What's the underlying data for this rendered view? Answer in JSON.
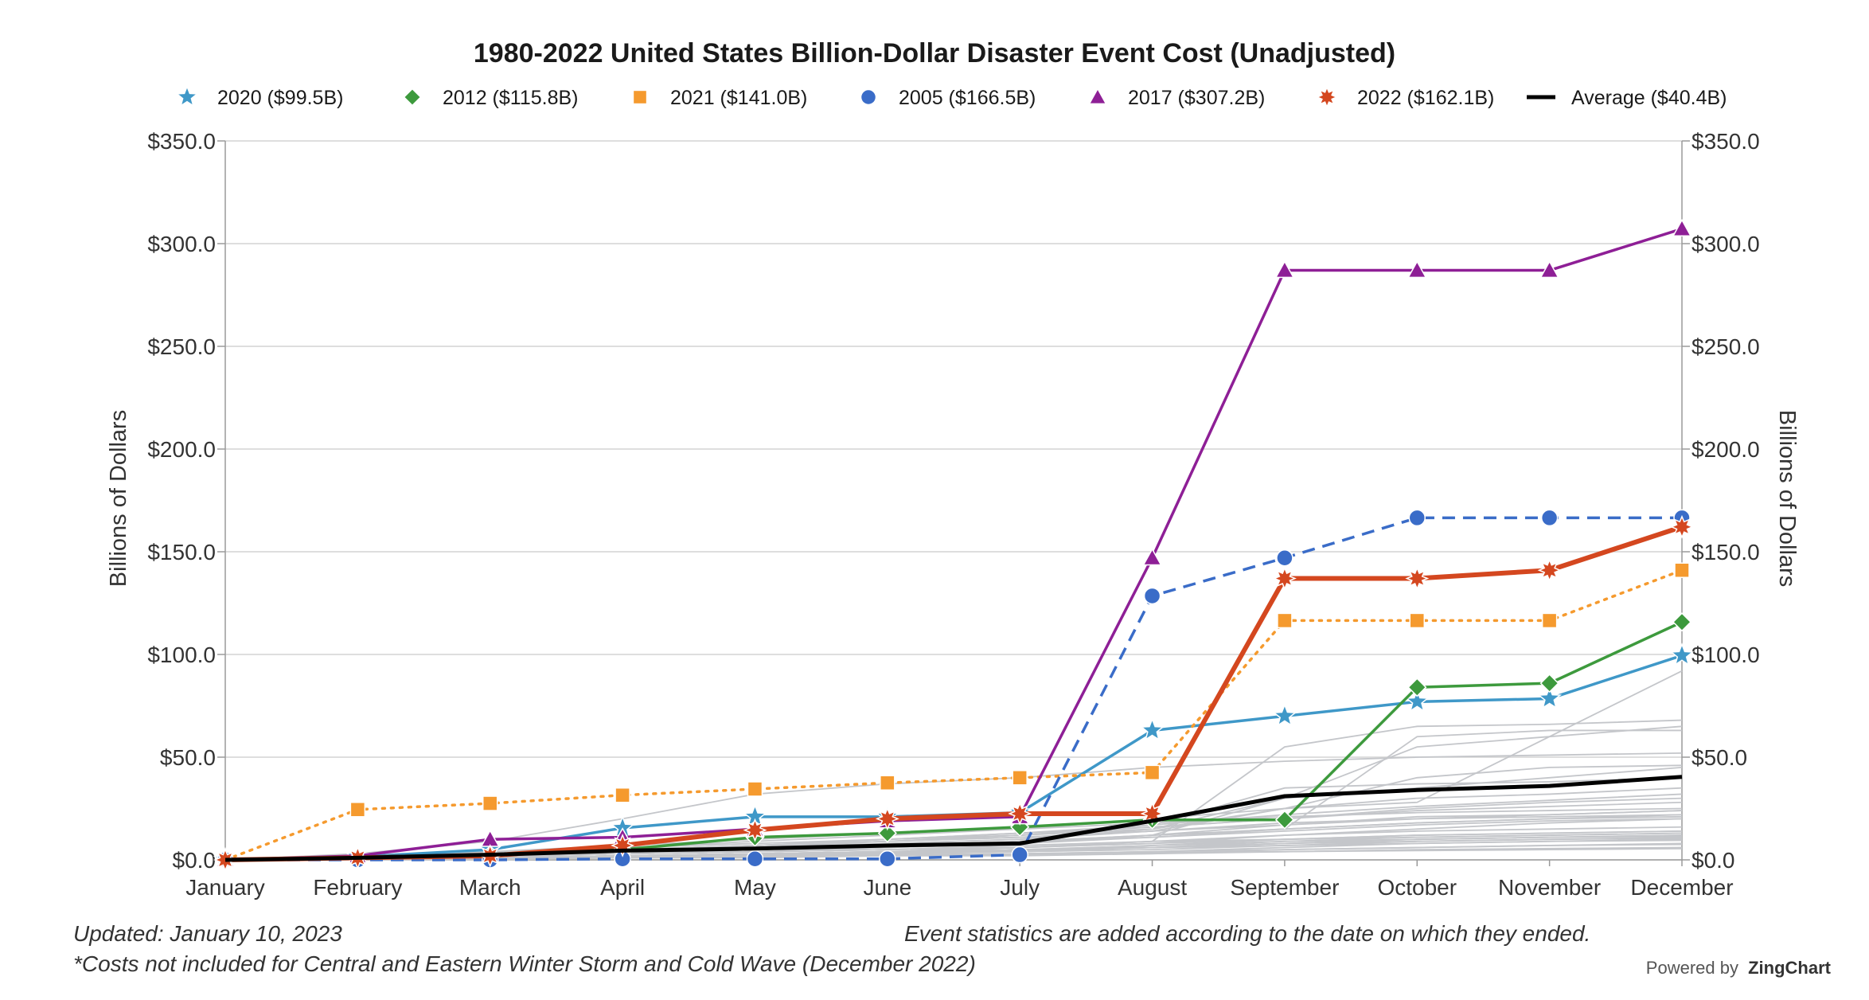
{
  "chart_data": {
    "type": "line",
    "title": "1980-2022 United States Billion-Dollar Disaster Event Cost (Unadjusted)",
    "ylabel": "Billions of Dollars",
    "ylabel_right": "Billions of Dollars",
    "xlabel": "",
    "ylim": [
      0,
      350
    ],
    "y_ticks": [
      "$0.0",
      "$50.0",
      "$100.0",
      "$150.0",
      "$200.0",
      "$250.0",
      "$300.0",
      "$350.0"
    ],
    "categories": [
      "January",
      "February",
      "March",
      "April",
      "May",
      "June",
      "July",
      "August",
      "September",
      "October",
      "November",
      "December"
    ],
    "grid": true,
    "legend_position": "top",
    "series": [
      {
        "name": "2020 ($99.5B)",
        "color": "#3f98c8",
        "marker": "star",
        "line": "solid",
        "values": [
          0,
          1.5,
          5,
          15.5,
          21,
          21,
          23,
          63,
          70,
          77,
          78.5,
          99.5
        ]
      },
      {
        "name": "2012 ($115.8B)",
        "color": "#3d9a3d",
        "marker": "diamond",
        "line": "solid",
        "values": [
          0,
          1.5,
          2.5,
          5,
          11,
          13,
          16,
          19.5,
          19.5,
          84,
          86,
          115.8
        ]
      },
      {
        "name": "2021 ($141.0B)",
        "color": "#f59a2e",
        "marker": "square",
        "line": "dotted",
        "values": [
          0,
          24.5,
          27.5,
          31.5,
          34.5,
          37.5,
          40,
          42.5,
          116.5,
          116.5,
          116.5,
          141.0
        ]
      },
      {
        "name": "2005 ($166.5B)",
        "color": "#3a6cc8",
        "marker": "circle",
        "line": "dashed",
        "values": [
          0,
          0,
          0,
          0.5,
          0.5,
          0.5,
          2.5,
          128.5,
          147,
          166.5,
          166.5,
          166.5
        ]
      },
      {
        "name": "2017 ($307.2B)",
        "color": "#8e1f96",
        "marker": "triangle",
        "line": "solid",
        "values": [
          0,
          2,
          10,
          11,
          15,
          19,
          21,
          147,
          287,
          287,
          287,
          307.2
        ]
      },
      {
        "name": "2022 ($162.1B)",
        "color": "#d4471f",
        "marker": "burst",
        "line": "solid",
        "values": [
          0,
          1,
          2,
          7,
          14.5,
          20,
          22.5,
          22.5,
          137,
          137,
          141,
          162.1
        ]
      },
      {
        "name": "Average ($40.4B)",
        "color": "#000000",
        "marker": "none",
        "line": "solid",
        "values": [
          0,
          1,
          2.5,
          4.5,
          5.5,
          7,
          8,
          19,
          31,
          34,
          36,
          40.4
        ]
      }
    ],
    "background_series_color": "#c4c6ca",
    "background_series": [
      [
        0,
        0.5,
        1,
        2,
        3,
        4,
        5,
        6,
        8,
        9,
        10,
        10.5
      ],
      [
        0,
        1,
        2,
        3,
        4,
        5,
        6,
        9,
        12,
        14,
        15,
        16
      ],
      [
        0,
        0,
        1,
        1,
        2,
        3,
        4,
        5,
        7,
        9,
        10,
        11
      ],
      [
        0,
        1,
        3,
        5,
        7,
        9,
        11,
        14,
        18,
        20,
        21,
        22
      ],
      [
        0,
        0.5,
        1,
        2,
        3,
        4,
        6,
        9,
        55,
        65,
        66,
        68
      ],
      [
        0,
        1,
        2,
        4,
        6,
        8,
        10,
        15,
        25,
        40,
        45,
        46
      ],
      [
        0,
        0,
        1,
        2,
        3,
        3,
        4,
        7,
        10,
        12,
        13,
        14
      ],
      [
        0,
        2,
        4,
        7,
        10,
        13,
        15,
        18,
        21,
        23,
        24,
        25
      ],
      [
        0,
        3,
        9,
        20,
        32,
        37,
        40,
        45,
        48,
        50,
        51,
        52
      ],
      [
        0,
        1,
        2,
        3,
        4,
        5,
        6,
        8,
        12,
        15,
        18,
        20
      ],
      [
        0,
        0.5,
        1,
        1.5,
        2,
        3,
        4,
        6,
        9,
        11,
        12,
        13
      ],
      [
        0,
        1,
        2,
        3,
        5,
        7,
        9,
        11,
        14,
        17,
        19,
        20
      ],
      [
        0,
        0,
        0,
        1,
        1,
        2,
        2,
        3,
        5,
        6,
        7,
        8
      ],
      [
        0,
        1,
        3,
        6,
        9,
        12,
        15,
        20,
        25,
        30,
        32,
        35
      ],
      [
        0,
        1,
        2,
        3,
        4,
        6,
        8,
        12,
        15,
        60,
        63,
        63
      ],
      [
        0,
        0.5,
        1.5,
        3,
        5,
        7,
        9,
        12,
        17,
        21,
        22,
        24
      ],
      [
        0,
        0,
        1,
        1,
        2,
        2,
        3,
        4,
        6,
        8,
        9,
        10
      ],
      [
        0,
        2,
        3,
        5,
        7,
        9,
        12,
        16,
        20,
        24,
        26,
        28
      ],
      [
        0,
        0,
        0.5,
        1,
        1.5,
        2,
        3,
        4,
        5,
        6,
        7,
        7.5
      ],
      [
        0,
        1,
        2,
        4,
        6,
        9,
        12,
        17,
        35,
        37,
        38,
        40
      ],
      [
        0,
        1,
        2,
        3,
        4,
        6,
        8,
        12,
        30,
        55,
        60,
        65
      ],
      [
        0,
        1,
        2,
        3,
        4,
        5,
        7,
        9,
        10,
        11,
        12,
        13
      ],
      [
        0,
        0.5,
        1,
        1.5,
        2,
        2.5,
        3,
        3.5,
        4,
        4.5,
        5,
        5.5
      ],
      [
        0,
        1,
        2,
        3,
        5,
        7,
        9,
        12,
        15,
        18,
        20,
        22
      ],
      [
        0,
        0,
        1,
        2,
        3,
        4,
        5,
        7,
        9,
        10,
        11,
        12
      ],
      [
        0,
        1,
        3,
        5,
        7,
        10,
        13,
        17,
        22,
        26,
        29,
        32
      ],
      [
        0,
        2,
        4,
        6,
        8,
        10,
        12,
        15,
        30,
        35,
        40,
        45
      ],
      [
        0,
        1,
        2,
        3,
        4,
        5,
        6,
        8,
        10,
        12,
        13,
        14
      ],
      [
        0,
        0.5,
        1,
        2,
        3,
        4,
        5,
        6,
        7,
        8,
        9,
        9.5
      ],
      [
        0,
        1,
        2,
        4,
        7,
        10,
        13,
        16,
        20,
        25,
        28,
        30
      ],
      [
        0,
        1,
        2,
        3,
        5,
        8,
        10,
        14,
        25,
        28,
        60,
        92
      ],
      [
        0,
        0,
        1,
        2,
        3,
        4,
        5,
        6,
        8,
        10,
        11,
        12
      ],
      [
        0,
        1,
        2,
        3,
        4,
        6,
        8,
        11,
        15,
        18,
        20,
        21
      ],
      [
        0,
        0.5,
        1,
        1.5,
        2.5,
        3.5,
        4.5,
        6,
        8,
        10,
        11,
        11.5
      ],
      [
        0,
        1,
        3,
        5,
        7,
        9,
        11,
        14,
        17,
        20,
        22,
        24
      ],
      [
        0,
        0,
        0.5,
        1,
        1.5,
        2,
        2.5,
        3,
        4,
        5,
        5.5,
        6
      ]
    ],
    "annotations": {
      "updated": "Updated: January 10, 2023",
      "footnote": "*Costs not included for Central and Eastern Winter Storm and Cold Wave (December 2022)",
      "event_note": "Event statistics are added according to the date on which they ended."
    },
    "credit_prefix": "Powered by",
    "credit_brand": "ZingChart"
  }
}
